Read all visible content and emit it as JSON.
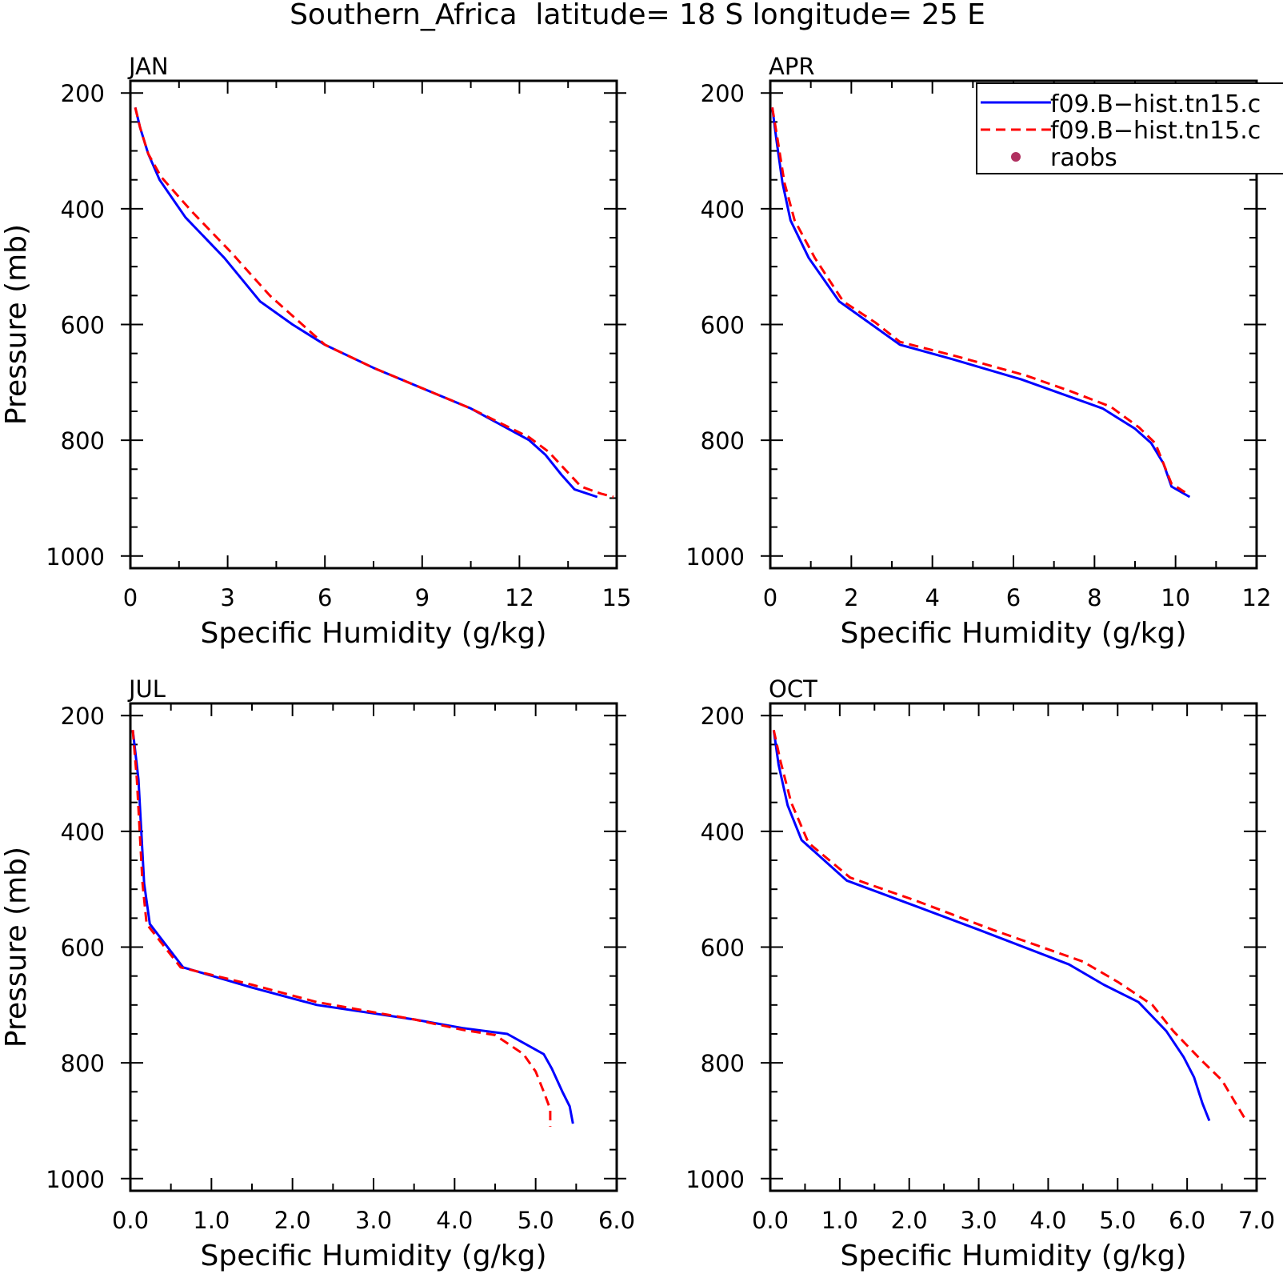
{
  "figure_title": "Southern_Africa  latitude= 18 S longitude= 25 E",
  "legend": {
    "entries": [
      {
        "label": "f09.B−hist.tn15.c",
        "style": "solid",
        "color": "#0000ff"
      },
      {
        "label": "f09.B−hist.tn15.c",
        "style": "dashed",
        "color": "#ff0000"
      },
      {
        "label": "raobs",
        "style": "dot",
        "color": "#b03060"
      }
    ]
  },
  "chart_data": [
    {
      "type": "line",
      "title": "JAN",
      "xlabel": "Specific Humidity (g/kg)",
      "ylabel": "Pressure (mb)",
      "xlim": [
        0,
        15
      ],
      "ylim": [
        1000,
        200
      ],
      "xticks": [
        "0",
        "3",
        "6",
        "9",
        "12",
        "15"
      ],
      "yticks": [
        "200",
        "400",
        "600",
        "800",
        "1000"
      ],
      "series": [
        {
          "style": "solid",
          "color": "#0000ff",
          "points": [
            [
              0.15,
              225
            ],
            [
              0.3,
              260
            ],
            [
              0.55,
              305
            ],
            [
              0.9,
              350
            ],
            [
              1.7,
              415
            ],
            [
              2.9,
              485
            ],
            [
              4.0,
              560
            ],
            [
              5.0,
              600
            ],
            [
              6.0,
              635
            ],
            [
              7.5,
              675
            ],
            [
              9.0,
              710
            ],
            [
              10.5,
              745
            ],
            [
              12.3,
              800
            ],
            [
              12.8,
              825
            ],
            [
              13.3,
              860
            ],
            [
              13.7,
              885
            ],
            [
              14.4,
              898
            ]
          ]
        },
        {
          "style": "dashed",
          "color": "#ff0000",
          "points": [
            [
              0.15,
              225
            ],
            [
              0.3,
              260
            ],
            [
              0.55,
              305
            ],
            [
              0.95,
              345
            ],
            [
              1.9,
              405
            ],
            [
              3.1,
              475
            ],
            [
              4.3,
              550
            ],
            [
              5.2,
              595
            ],
            [
              6.0,
              635
            ],
            [
              7.5,
              675
            ],
            [
              9.0,
              710
            ],
            [
              10.5,
              745
            ],
            [
              12.3,
              795
            ],
            [
              12.9,
              820
            ],
            [
              13.4,
              850
            ],
            [
              13.9,
              880
            ],
            [
              14.5,
              892
            ],
            [
              14.9,
              898
            ]
          ]
        }
      ]
    },
    {
      "type": "line",
      "title": "APR",
      "xlabel": "Specific Humidity (g/kg)",
      "ylabel": "",
      "xlim": [
        0,
        12
      ],
      "ylim": [
        1000,
        200
      ],
      "xticks": [
        "0",
        "2",
        "4",
        "6",
        "8",
        "10",
        "12"
      ],
      "yticks": [
        "200",
        "400",
        "600",
        "800",
        "1000"
      ],
      "series": [
        {
          "style": "solid",
          "color": "#0000ff",
          "points": [
            [
              0.05,
              225
            ],
            [
              0.15,
              280
            ],
            [
              0.3,
              355
            ],
            [
              0.5,
              420
            ],
            [
              0.95,
              485
            ],
            [
              1.7,
              560
            ],
            [
              2.5,
              600
            ],
            [
              3.2,
              635
            ],
            [
              4.5,
              660
            ],
            [
              6.2,
              695
            ],
            [
              7.2,
              720
            ],
            [
              8.2,
              745
            ],
            [
              9.0,
              780
            ],
            [
              9.4,
              805
            ],
            [
              9.7,
              840
            ],
            [
              9.9,
              880
            ],
            [
              10.35,
              898
            ]
          ]
        },
        {
          "style": "dashed",
          "color": "#ff0000",
          "points": [
            [
              0.05,
              225
            ],
            [
              0.18,
              280
            ],
            [
              0.35,
              355
            ],
            [
              0.6,
              420
            ],
            [
              1.1,
              485
            ],
            [
              1.8,
              560
            ],
            [
              2.6,
              597
            ],
            [
              3.2,
              630
            ],
            [
              4.6,
              655
            ],
            [
              6.3,
              688
            ],
            [
              7.4,
              715
            ],
            [
              8.4,
              742
            ],
            [
              9.1,
              778
            ],
            [
              9.5,
              805
            ],
            [
              9.7,
              840
            ],
            [
              9.9,
              875
            ],
            [
              10.35,
              895
            ]
          ]
        }
      ]
    },
    {
      "type": "line",
      "title": "JUL",
      "xlabel": "Specific Humidity (g/kg)",
      "ylabel": "Pressure (mb)",
      "xlim": [
        0,
        6
      ],
      "ylim": [
        1000,
        200
      ],
      "xticks": [
        "0.0",
        "1.0",
        "2.0",
        "3.0",
        "4.0",
        "5.0",
        "6.0"
      ],
      "yticks": [
        "200",
        "400",
        "600",
        "800",
        "1000"
      ],
      "series": [
        {
          "style": "solid",
          "color": "#0000ff",
          "points": [
            [
              0.03,
              225
            ],
            [
              0.1,
              310
            ],
            [
              0.17,
              490
            ],
            [
              0.24,
              560
            ],
            [
              0.65,
              635
            ],
            [
              1.5,
              670
            ],
            [
              2.3,
              700
            ],
            [
              3.5,
              725
            ],
            [
              4.1,
              740
            ],
            [
              4.65,
              750
            ],
            [
              5.1,
              785
            ],
            [
              5.2,
              810
            ],
            [
              5.33,
              850
            ],
            [
              5.42,
              875
            ],
            [
              5.46,
              905
            ]
          ]
        },
        {
          "style": "dashed",
          "color": "#ff0000",
          "points": [
            [
              0.03,
              225
            ],
            [
              0.08,
              310
            ],
            [
              0.15,
              490
            ],
            [
              0.2,
              560
            ],
            [
              0.62,
              635
            ],
            [
              1.5,
              665
            ],
            [
              2.3,
              695
            ],
            [
              3.5,
              725
            ],
            [
              4.1,
              743
            ],
            [
              4.5,
              752
            ],
            [
              4.85,
              785
            ],
            [
              5.0,
              815
            ],
            [
              5.1,
              850
            ],
            [
              5.18,
              880
            ],
            [
              5.18,
              910
            ]
          ]
        }
      ]
    },
    {
      "type": "line",
      "title": "OCT",
      "xlabel": "Specific Humidity (g/kg)",
      "ylabel": "",
      "xlim": [
        0,
        7
      ],
      "ylim": [
        1000,
        200
      ],
      "xticks": [
        "0.0",
        "1.0",
        "2.0",
        "3.0",
        "4.0",
        "5.0",
        "6.0",
        "7.0"
      ],
      "yticks": [
        "200",
        "400",
        "600",
        "800",
        "1000"
      ],
      "series": [
        {
          "style": "solid",
          "color": "#0000ff",
          "points": [
            [
              0.05,
              225
            ],
            [
              0.12,
              285
            ],
            [
              0.25,
              355
            ],
            [
              0.45,
              415
            ],
            [
              1.1,
              485
            ],
            [
              2.0,
              525
            ],
            [
              3.0,
              570
            ],
            [
              4.3,
              630
            ],
            [
              4.8,
              665
            ],
            [
              5.3,
              695
            ],
            [
              5.7,
              745
            ],
            [
              5.95,
              790
            ],
            [
              6.1,
              825
            ],
            [
              6.22,
              870
            ],
            [
              6.32,
              900
            ]
          ]
        },
        {
          "style": "dashed",
          "color": "#ff0000",
          "points": [
            [
              0.05,
              225
            ],
            [
              0.15,
              280
            ],
            [
              0.3,
              350
            ],
            [
              0.55,
              420
            ],
            [
              1.15,
              480
            ],
            [
              2.1,
              520
            ],
            [
              3.2,
              570
            ],
            [
              4.5,
              625
            ],
            [
              5.0,
              660
            ],
            [
              5.5,
              700
            ],
            [
              5.8,
              745
            ],
            [
              6.2,
              795
            ],
            [
              6.5,
              830
            ],
            [
              6.7,
              870
            ],
            [
              6.85,
              900
            ]
          ]
        }
      ]
    }
  ]
}
